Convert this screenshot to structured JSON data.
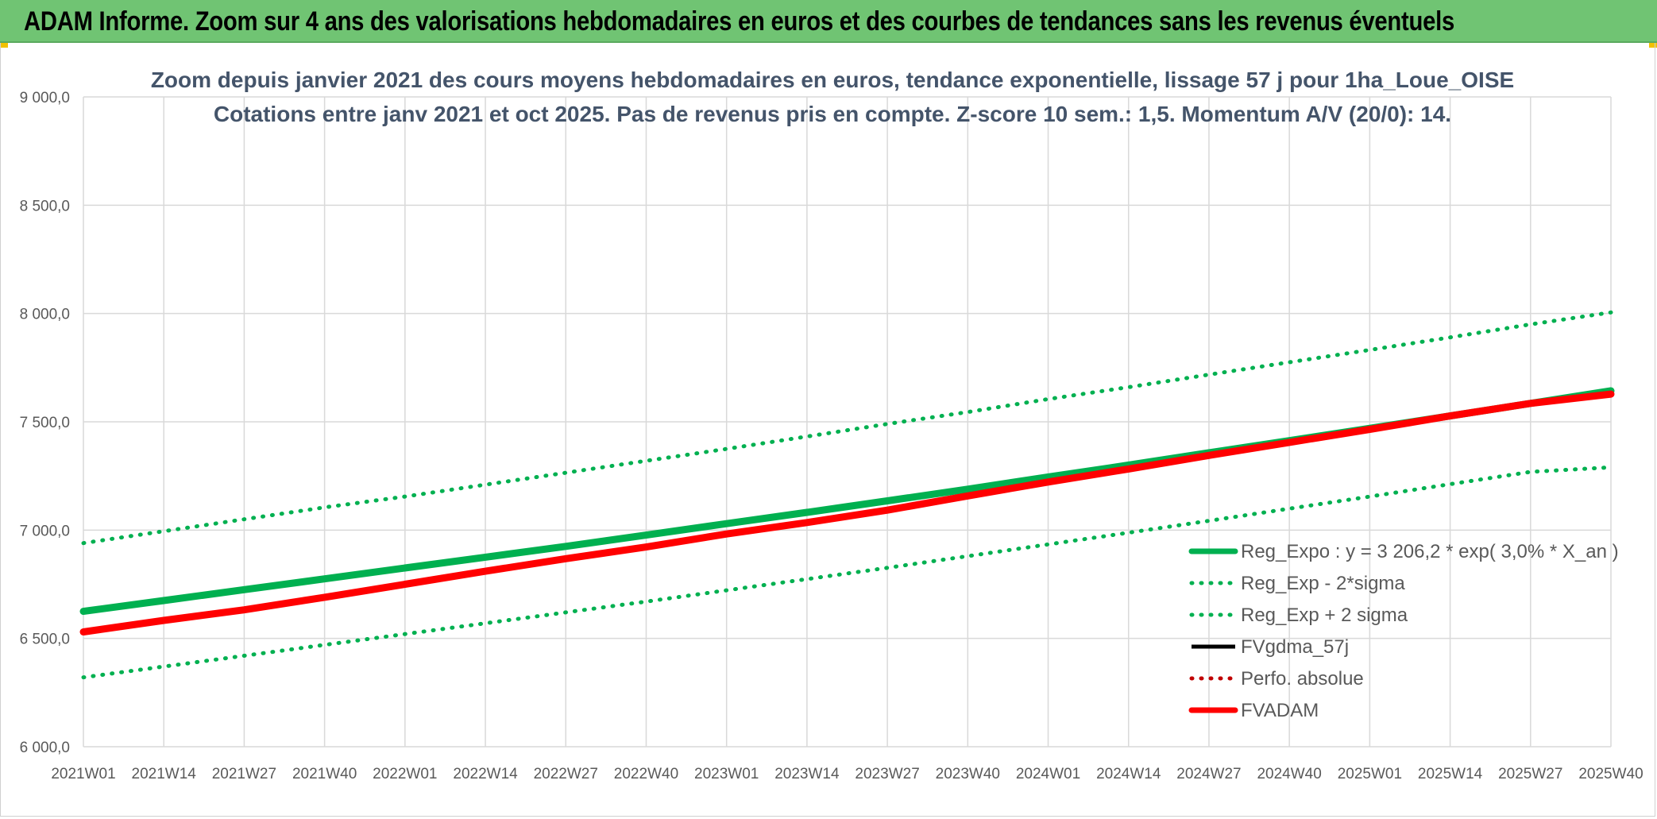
{
  "header": {
    "title": "ADAM Informe. Zoom sur 4 ans des valorisations hebdomadaires en euros et des courbes de tendances sans les revenus éventuels"
  },
  "colors": {
    "banner": "#70c473",
    "green": "#00b050",
    "red": "#ff0000",
    "black": "#000000",
    "grid": "#d9d9d9",
    "title": "#44546a"
  },
  "chart_data": {
    "type": "line",
    "title": "Zoom depuis janvier 2021 des cours moyens hebdomadaires en euros, tendance exponentielle, lissage 57 j pour 1ha_Loue_OISE",
    "subtitle": "Cotations entre janv 2021 et oct 2025. Pas de revenus pris en compte. Z-score 10 sem.: 1,5. Momentum A/V (20/0): 14.",
    "xlabel": "",
    "ylabel": "",
    "ylim": [
      6000,
      9000
    ],
    "y_ticks": [
      "9 000,0",
      "8 500,0",
      "8 000,0",
      "7 500,0",
      "7 000,0",
      "6 500,0",
      "6 000,0"
    ],
    "categories": [
      "2021W01",
      "2021W14",
      "2021W27",
      "2021W40",
      "2022W01",
      "2022W14",
      "2022W27",
      "2022W40",
      "2023W01",
      "2023W14",
      "2023W27",
      "2023W40",
      "2024W01",
      "2024W14",
      "2024W27",
      "2024W40",
      "2025W01",
      "2025W14",
      "2025W27",
      "2025W40"
    ],
    "grid": true,
    "legend_position": "bottom-right",
    "series": [
      {
        "name": "Reg_Expo : y = 3 206,2 * exp( 3,0% *  X_an )",
        "style": "solid-thick",
        "color": "#00b050",
        "values": [
          6625,
          6675,
          6725,
          6775,
          6825,
          6875,
          6925,
          6977,
          7030,
          7082,
          7135,
          7189,
          7245,
          7300,
          7357,
          7413,
          7470,
          7527,
          7585,
          7643
        ]
      },
      {
        "name": "Reg_Exp - 2*sigma",
        "style": "dotted",
        "color": "#00b050",
        "values": [
          6320,
          6370,
          6420,
          6470,
          6520,
          6570,
          6620,
          6670,
          6722,
          6774,
          6826,
          6880,
          6934,
          6988,
          7043,
          7099,
          7155,
          7212,
          7269,
          7290
        ]
      },
      {
        "name": "Reg_Exp + 2 sigma",
        "style": "dotted",
        "color": "#00b050",
        "values": [
          6940,
          6995,
          7050,
          7105,
          7155,
          7210,
          7265,
          7320,
          7375,
          7432,
          7490,
          7545,
          7605,
          7660,
          7718,
          7775,
          7832,
          7890,
          7950,
          8005
        ]
      },
      {
        "name": "FVgdma_57j",
        "style": "solid",
        "color": "#000000",
        "values": [
          6530,
          6583,
          6632,
          6690,
          6750,
          6810,
          6868,
          6922,
          6982,
          7035,
          7092,
          7158,
          7222,
          7282,
          7345,
          7405,
          7465,
          7527,
          7585,
          7625
        ]
      },
      {
        "name": "Perfo. absolue",
        "style": "dotted",
        "color": "#c00000",
        "values": [
          6530,
          6583,
          6632,
          6690,
          6750,
          6810,
          6868,
          6922,
          6982,
          7035,
          7092,
          7158,
          7222,
          7282,
          7345,
          7405,
          7465,
          7527,
          7585,
          7625
        ]
      },
      {
        "name": "FVADAM",
        "style": "solid-thick",
        "color": "#ff0000",
        "values": [
          6530,
          6583,
          6632,
          6690,
          6750,
          6810,
          6868,
          6922,
          6982,
          7035,
          7092,
          7158,
          7222,
          7282,
          7345,
          7405,
          7465,
          7527,
          7585,
          7628
        ]
      }
    ]
  }
}
